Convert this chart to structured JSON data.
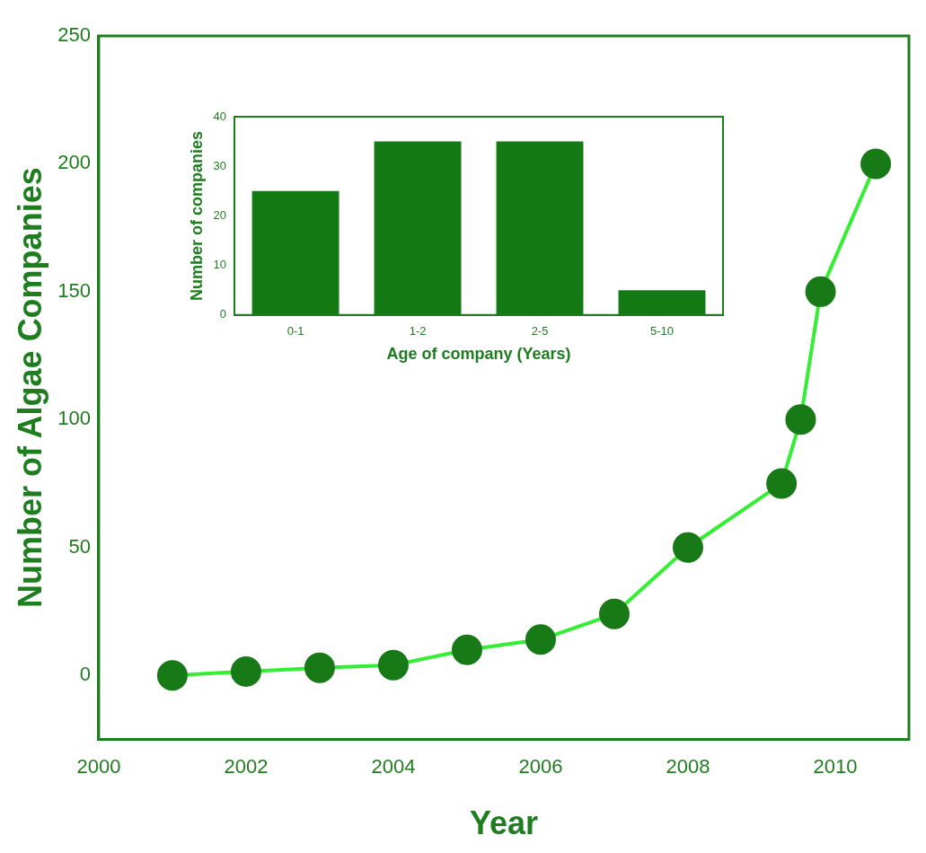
{
  "chart_data": [
    {
      "type": "line",
      "xlabel": "Year",
      "ylabel": "Number of Algae Companies",
      "x": [
        2001,
        2002,
        2003,
        2004,
        2005,
        2006,
        2007,
        2008,
        2009.27,
        2009.53,
        2009.8,
        2010.55
      ],
      "series": [
        {
          "color": "#33ee33",
          "values": [
            0,
            1.5,
            3,
            4,
            10,
            14,
            24,
            50,
            75,
            100,
            150,
            200
          ]
        }
      ],
      "marker": "circle",
      "xlim": [
        2000,
        2011
      ],
      "xticks": [
        2000,
        2002,
        2004,
        2006,
        2008,
        2010
      ],
      "ylim": [
        -25,
        250
      ],
      "yticks": [
        0,
        50,
        100,
        150,
        200,
        250
      ],
      "grid": false,
      "legend": false
    },
    {
      "type": "bar",
      "xlabel": "Age of company (Years)",
      "ylabel": "Number of companies",
      "categories": [
        "0-1",
        "1-2",
        "2-5",
        "5-10"
      ],
      "values": [
        25,
        35,
        35,
        5
      ],
      "color": "#137a13",
      "ylim": [
        0,
        40
      ],
      "yticks": [
        0,
        10,
        20,
        30,
        40
      ],
      "grid": false,
      "legend": false
    }
  ]
}
